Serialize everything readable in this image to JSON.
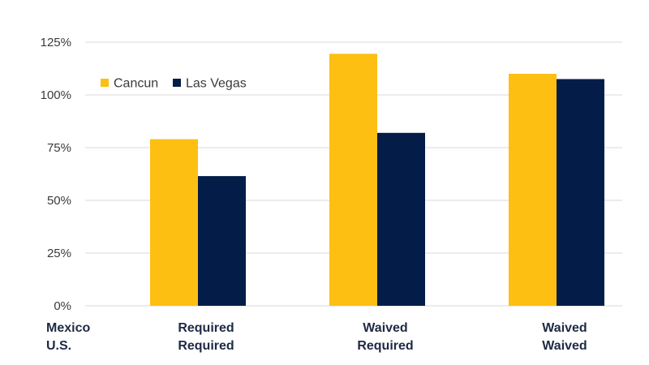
{
  "chart_data": {
    "type": "bar",
    "categories": [
      [
        "Required",
        "Required"
      ],
      [
        "Waived",
        "Required"
      ],
      [
        "Waived",
        "Waived"
      ]
    ],
    "row_headers": [
      "Mexico",
      "U.S."
    ],
    "series": [
      {
        "name": "Cancun",
        "values": [
          79,
          119.5,
          110
        ],
        "color": "#fdbf12"
      },
      {
        "name": "Las Vegas",
        "values": [
          61.5,
          82,
          107.5
        ],
        "color": "#031d48"
      }
    ],
    "y_ticks": [
      "0%",
      "25%",
      "50%",
      "75%",
      "100%",
      "125%"
    ],
    "y_tick_values": [
      0,
      25,
      50,
      75,
      100,
      125
    ],
    "ylim": [
      0,
      125
    ],
    "grid": true,
    "legend_position": "top-left"
  }
}
